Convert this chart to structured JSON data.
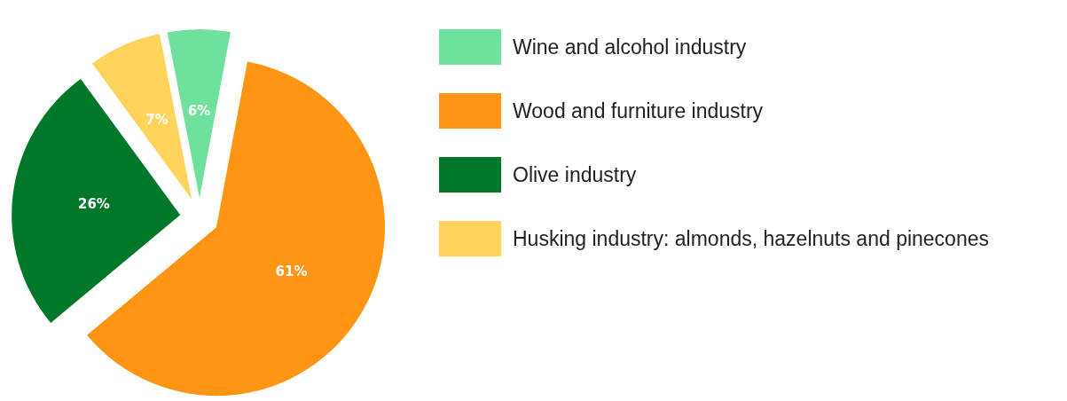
{
  "chart_data": {
    "type": "pie",
    "categories": [
      "Wine and alcohol industry",
      "Wood and furniture industry",
      "Olive industry",
      "Husking industry: almonds, hazelnuts and pinecones"
    ],
    "values": [
      6,
      61,
      26,
      7
    ],
    "value_labels": [
      "6%",
      "61%",
      "26%",
      "7%"
    ],
    "colors": [
      "#6ee29c",
      "#ff9512",
      "#00782a",
      "#ffd35c"
    ],
    "legend": "top right"
  }
}
